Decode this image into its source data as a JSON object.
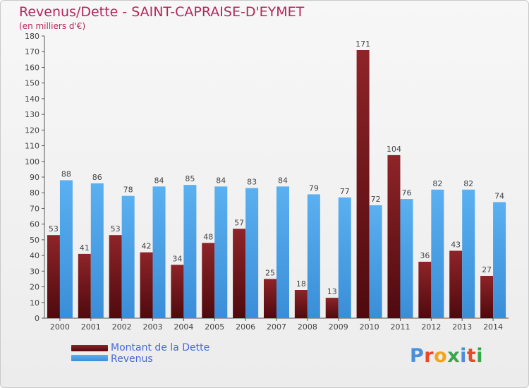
{
  "header": {
    "title": "Revenus/Dette - SAINT-CAPRAISE-D'EYMET",
    "subtitle": "(en milliers d'€)"
  },
  "colors": {
    "title": "#b5275a",
    "dette": "#7a1a1e",
    "revenus": "#4aa3e8",
    "legend_text": "#4a68d8"
  },
  "legend": {
    "items": [
      {
        "label": "Montant de la Dette",
        "color": "#7a1a1e"
      },
      {
        "label": "Revenus",
        "color": "#4aa3e8"
      }
    ]
  },
  "logo": {
    "text": "Proxiti",
    "letters": [
      {
        "ch": "P",
        "color": "#4a8fd8"
      },
      {
        "ch": "r",
        "color": "#e8492b"
      },
      {
        "ch": "o",
        "color": "#f2a51a"
      },
      {
        "ch": "x",
        "color": "#35a84a"
      },
      {
        "ch": "i",
        "color": "#4a8fd8"
      },
      {
        "ch": "t",
        "color": "#e8492b"
      },
      {
        "ch": "i",
        "color": "#35a84a"
      }
    ]
  },
  "chart_data": {
    "type": "bar",
    "title": "Revenus/Dette - SAINT-CAPRAISE-D'EYMET",
    "subtitle": "(en milliers d'€)",
    "categories": [
      "2000",
      "2001",
      "2002",
      "2003",
      "2004",
      "2005",
      "2006",
      "2007",
      "2008",
      "2009",
      "2010",
      "2011",
      "2012",
      "2013",
      "2014"
    ],
    "series": [
      {
        "name": "Montant de la Dette",
        "values": [
          53,
          41,
          53,
          42,
          34,
          48,
          57,
          25,
          18,
          13,
          171,
          104,
          36,
          43,
          27
        ]
      },
      {
        "name": "Revenus",
        "values": [
          88,
          86,
          78,
          84,
          85,
          84,
          83,
          84,
          79,
          77,
          72,
          76,
          82,
          82,
          74
        ]
      }
    ],
    "ylim": [
      0,
      180
    ],
    "ytick_step": 10,
    "grid": false,
    "legend": "bottom-left"
  }
}
